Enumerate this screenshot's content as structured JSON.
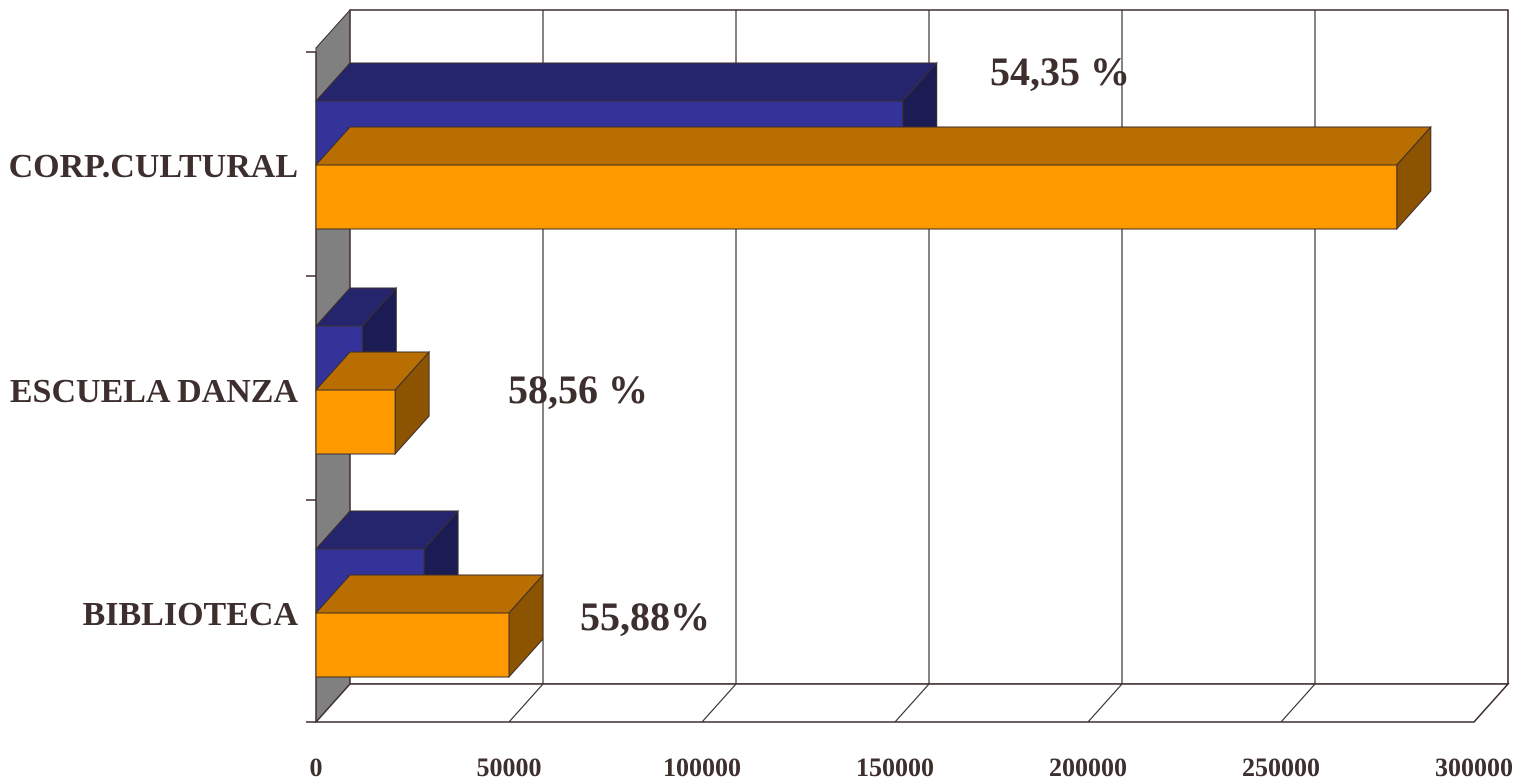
{
  "chart_data": {
    "type": "bar",
    "orientation": "horizontal",
    "three_d": true,
    "categories": [
      "CORP.CULTURAL",
      "ESCUELA DANZA",
      "BIBLIOTECA"
    ],
    "series": [
      {
        "values": [
          152000,
          12000,
          28000
        ],
        "color": "#333399"
      },
      {
        "values": [
          280000,
          20500,
          50000
        ],
        "color": "#ff9900"
      }
    ],
    "annotations": [
      "54,35 %",
      "58,56 %",
      "55,88%"
    ],
    "x_ticks": [
      "0",
      "50000",
      "100000",
      "150000",
      "200000",
      "250000",
      "300000"
    ],
    "xlim": [
      0,
      300000
    ],
    "grid": true,
    "title": "",
    "xlabel": "",
    "ylabel": ""
  }
}
